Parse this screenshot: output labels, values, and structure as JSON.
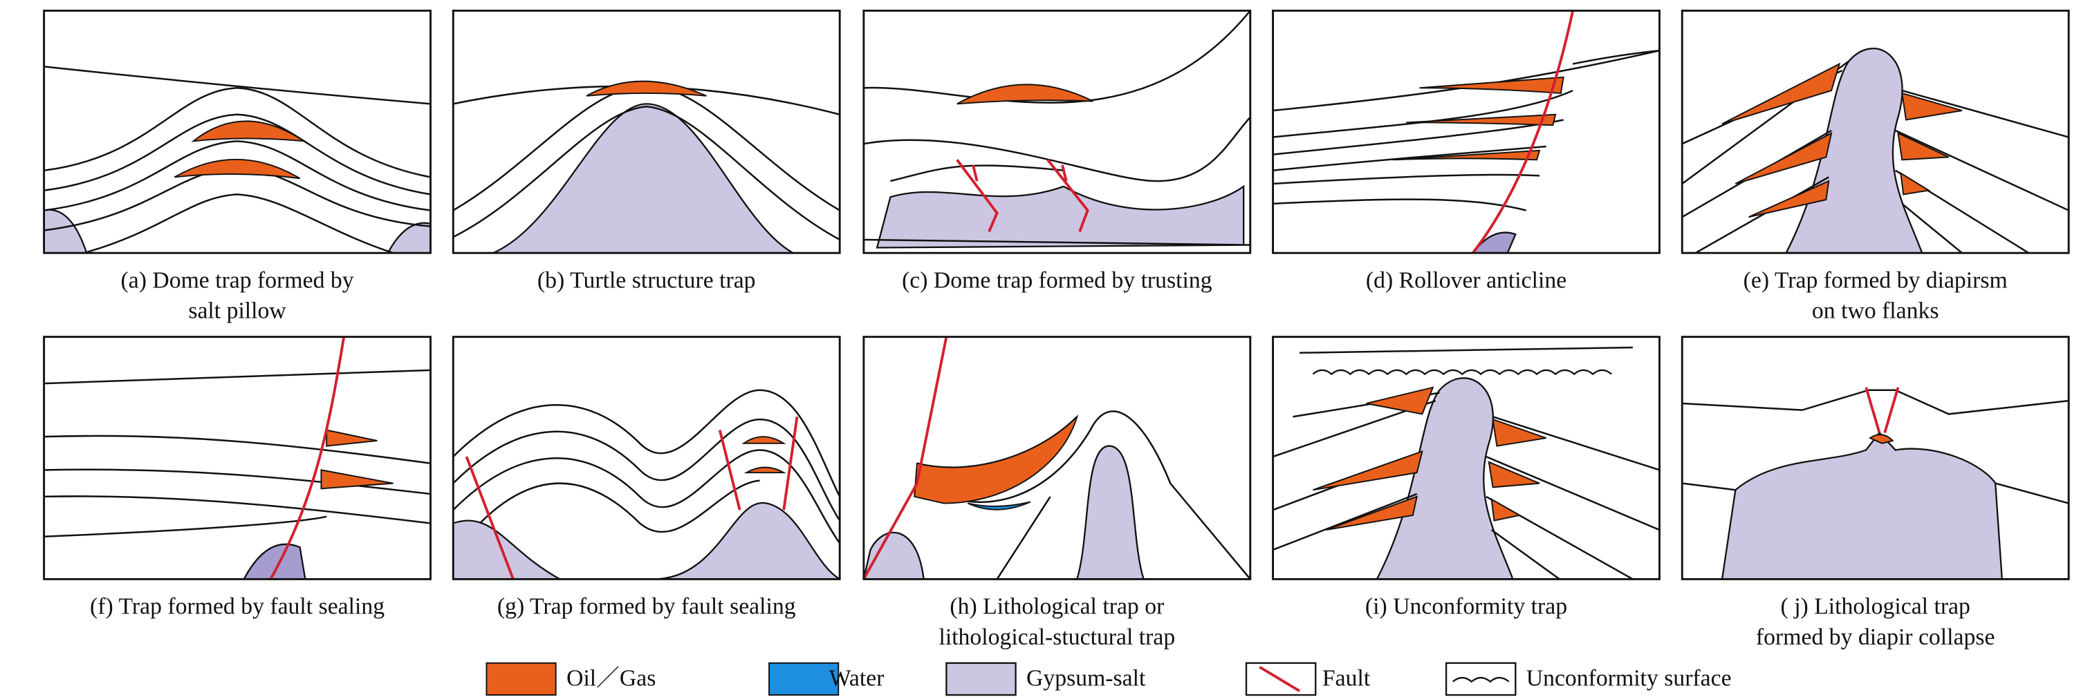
{
  "panels": [
    {
      "caption": [
        "(a) Dome trap formed by",
        "salt pillow"
      ]
    },
    {
      "caption": [
        "(b) Turtle structure trap"
      ]
    },
    {
      "caption": [
        "(c) Dome trap formed by trusting"
      ]
    },
    {
      "caption": [
        "(d) Rollover anticline"
      ]
    },
    {
      "caption": [
        "(e) Trap formed by diapirsm",
        "on two flanks"
      ]
    },
    {
      "caption": [
        "(f) Trap formed by fault sealing"
      ]
    },
    {
      "caption": [
        "(g) Trap formed by fault sealing"
      ]
    },
    {
      "caption": [
        "(h) Lithological trap or",
        "lithological-stuctural trap"
      ]
    },
    {
      "caption": [
        "(i) Unconformity trap"
      ]
    },
    {
      "caption": [
        "( j) Lithological trap",
        "formed by diapir collapse"
      ]
    }
  ],
  "legend": [
    {
      "label": "Oil／Gas"
    },
    {
      "label": "Water"
    },
    {
      "label": "Gypsum-salt"
    },
    {
      "label": "Fault"
    },
    {
      "label": "Unconformity surface"
    }
  ]
}
